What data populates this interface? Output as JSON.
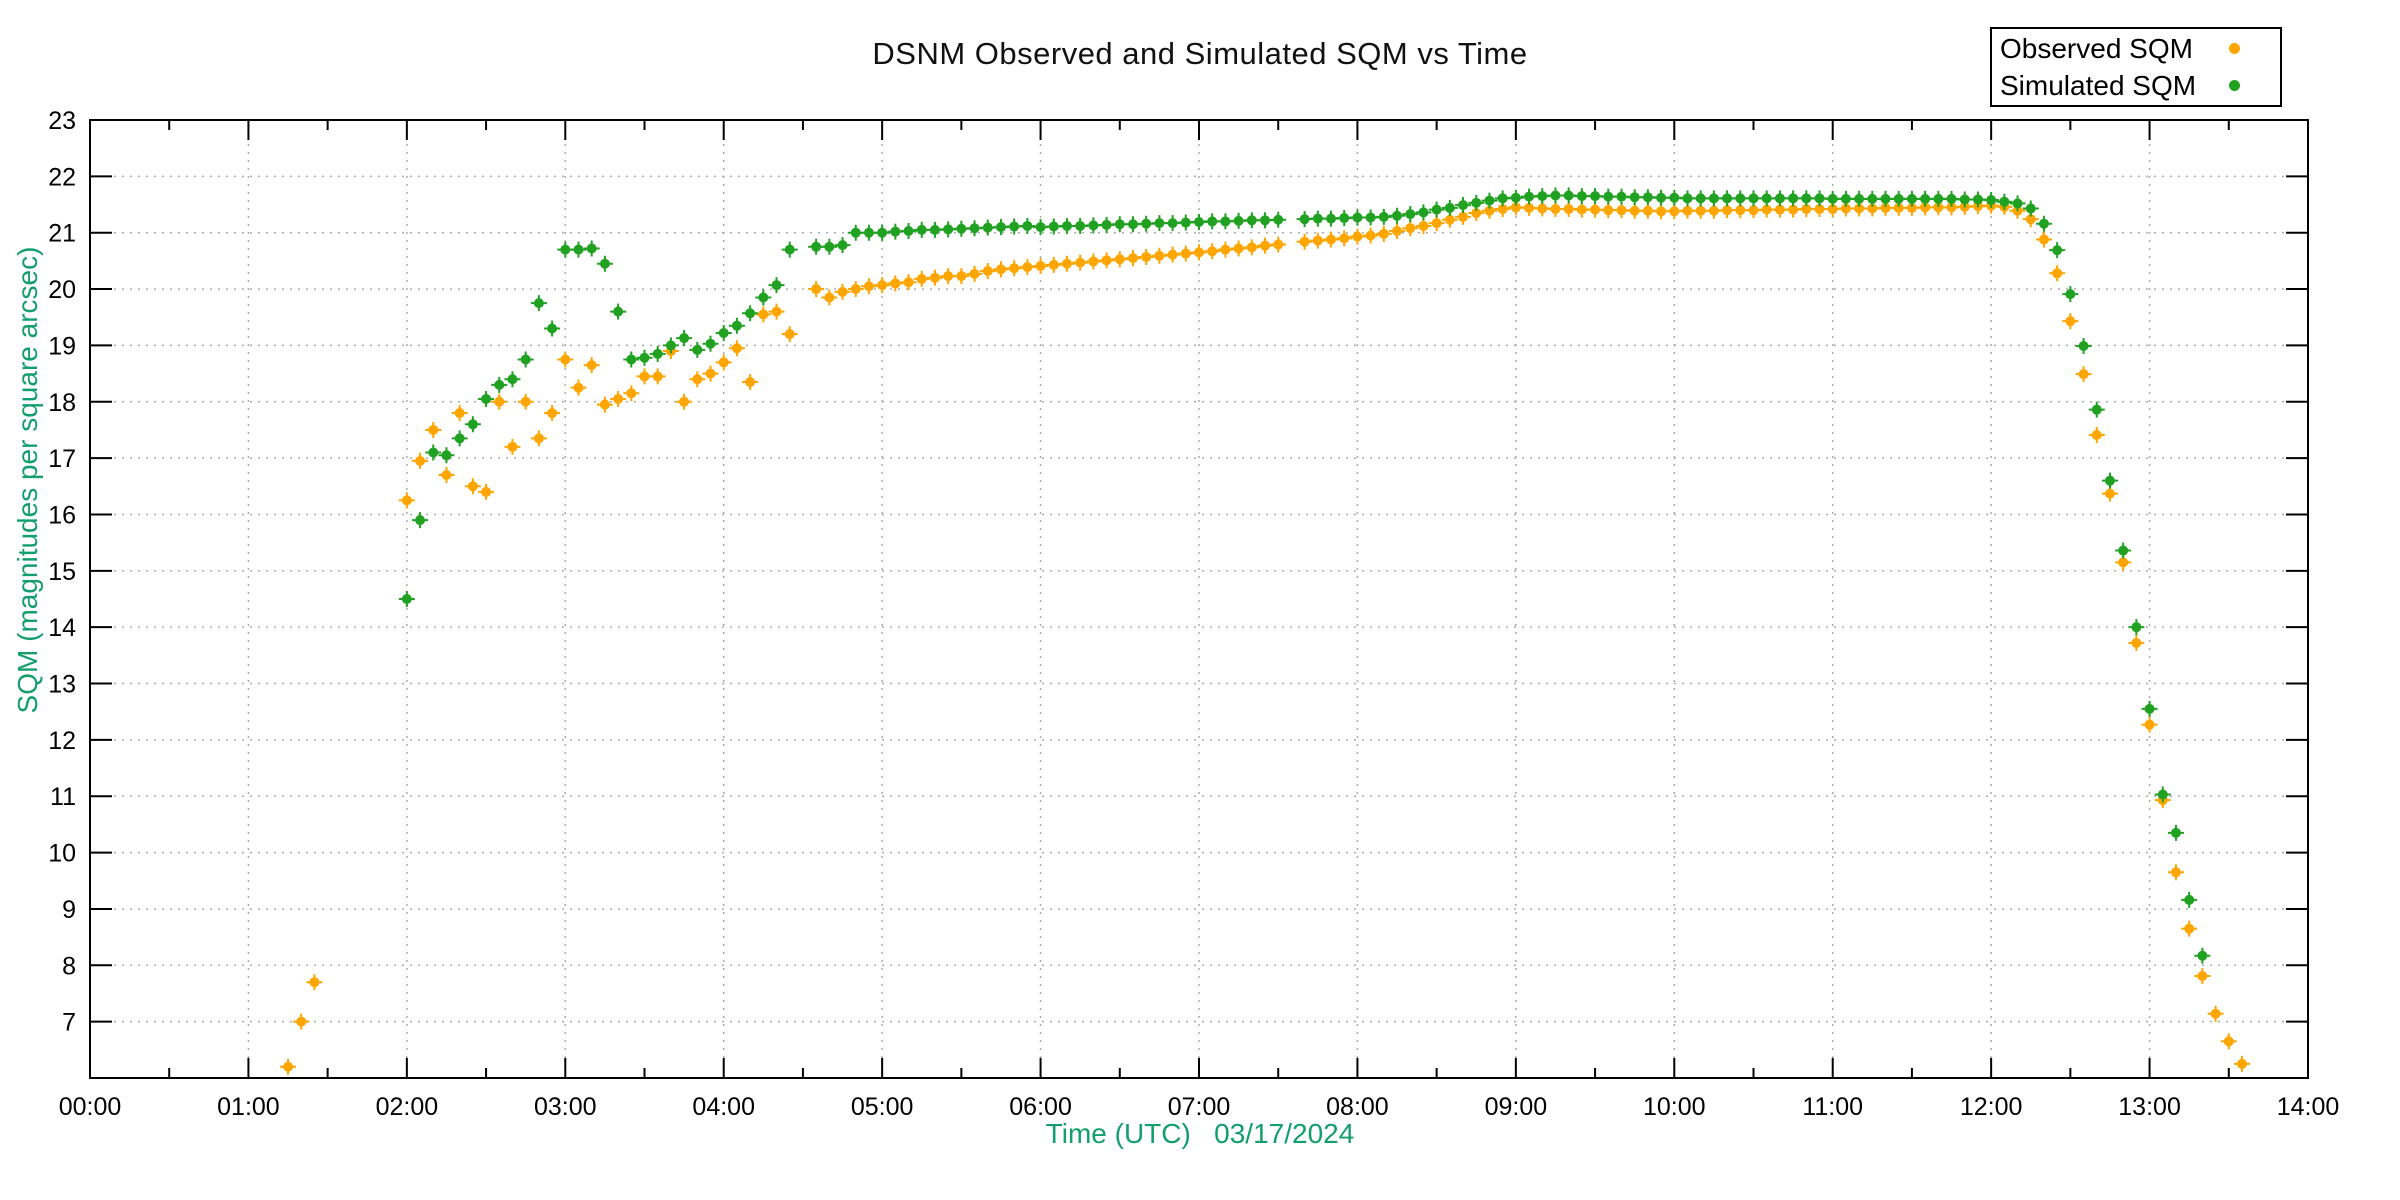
{
  "chart_data": {
    "type": "scatter",
    "title": "DSNM Observed and Simulated SQM vs Time",
    "xlabel": "Time (UTC)   03/17/2024",
    "ylabel": "SQM (magnitudes per square arcsec)",
    "axis_label_color": "#149E6C",
    "tick_label_color": "#000000",
    "frame_color": "#000000",
    "grid": {
      "show": true,
      "style": "dotted",
      "color": "#ababab"
    },
    "x_axis": {
      "min_hours": 0,
      "max_hours": 14,
      "major_tick_hours": 1,
      "minor_tick_hours": 0.5,
      "tick_labels": [
        "00:00",
        "01:00",
        "02:00",
        "03:00",
        "04:00",
        "05:00",
        "06:00",
        "07:00",
        "08:00",
        "09:00",
        "10:00",
        "11:00",
        "12:00",
        "13:00",
        "14:00"
      ]
    },
    "y_axis": {
      "min": 6,
      "max": 23,
      "tick_min": 7,
      "tick_max": 23,
      "tick_step": 1
    },
    "legend": {
      "position": "top-right",
      "entries": [
        {
          "label": "Observed SQM",
          "color": "#FFA500"
        },
        {
          "label": "Simulated SQM",
          "color": "#21A121"
        }
      ]
    },
    "series": [
      {
        "name": "Observed SQM",
        "color": "#FFA500",
        "points": [
          [
            "01:15",
            6.2
          ],
          [
            "01:20",
            7.0
          ],
          [
            "01:25",
            7.7
          ],
          [
            "02:00",
            16.25
          ],
          [
            "02:05",
            16.95
          ],
          [
            "02:10",
            17.5
          ],
          [
            "02:15",
            16.7
          ],
          [
            "02:20",
            17.8
          ],
          [
            "02:25",
            16.5
          ],
          [
            "02:30",
            16.4
          ],
          [
            "02:35",
            18.0
          ],
          [
            "02:40",
            17.2
          ],
          [
            "02:45",
            18.0
          ],
          [
            "02:50",
            17.35
          ],
          [
            "02:55",
            17.8
          ],
          [
            "03:00",
            18.75
          ],
          [
            "03:05",
            18.25
          ],
          [
            "03:10",
            18.65
          ],
          [
            "03:15",
            17.95
          ],
          [
            "03:20",
            18.05
          ],
          [
            "03:25",
            18.15
          ],
          [
            "03:30",
            18.45
          ],
          [
            "03:35",
            18.45
          ],
          [
            "03:40",
            18.9
          ],
          [
            "03:45",
            18.0
          ],
          [
            "03:50",
            18.4
          ],
          [
            "03:55",
            18.5
          ],
          [
            "04:00",
            18.7
          ],
          [
            "04:05",
            18.95
          ],
          [
            "04:10",
            18.35
          ],
          [
            "04:15",
            19.55
          ],
          [
            "04:20",
            19.6
          ],
          [
            "04:25",
            19.2
          ],
          [
            "04:35",
            20.0
          ],
          [
            "04:40",
            19.85
          ],
          [
            "04:45",
            19.95
          ],
          [
            "04:50",
            20.0
          ],
          [
            "04:55",
            20.05
          ],
          [
            "05:00",
            20.07
          ],
          [
            "05:05",
            20.1
          ],
          [
            "05:10",
            20.12
          ],
          [
            "05:15",
            20.18
          ],
          [
            "05:20",
            20.2
          ],
          [
            "05:25",
            20.23
          ],
          [
            "05:30",
            20.23
          ],
          [
            "05:35",
            20.27
          ],
          [
            "05:40",
            20.32
          ],
          [
            "05:45",
            20.35
          ],
          [
            "05:50",
            20.37
          ],
          [
            "05:55",
            20.39
          ],
          [
            "06:00",
            20.41
          ],
          [
            "06:05",
            20.43
          ],
          [
            "06:10",
            20.45
          ],
          [
            "06:15",
            20.47
          ],
          [
            "06:20",
            20.49
          ],
          [
            "06:25",
            20.51
          ],
          [
            "06:30",
            20.53
          ],
          [
            "06:35",
            20.55
          ],
          [
            "06:40",
            20.57
          ],
          [
            "06:45",
            20.59
          ],
          [
            "06:50",
            20.61
          ],
          [
            "06:55",
            20.63
          ],
          [
            "07:00",
            20.65
          ],
          [
            "07:05",
            20.67
          ],
          [
            "07:10",
            20.7
          ],
          [
            "07:15",
            20.72
          ],
          [
            "07:20",
            20.74
          ],
          [
            "07:25",
            20.77
          ],
          [
            "07:30",
            20.79
          ],
          [
            "07:40",
            20.84
          ],
          [
            "07:45",
            20.86
          ],
          [
            "07:50",
            20.88
          ],
          [
            "07:55",
            20.9
          ],
          [
            "08:00",
            20.93
          ],
          [
            "08:05",
            20.95
          ],
          [
            "08:10",
            20.98
          ],
          [
            "08:15",
            21.03
          ],
          [
            "08:20",
            21.08
          ],
          [
            "08:25",
            21.12
          ],
          [
            "08:30",
            21.17
          ],
          [
            "08:35",
            21.23
          ],
          [
            "08:40",
            21.28
          ],
          [
            "08:45",
            21.35
          ],
          [
            "08:50",
            21.39
          ],
          [
            "08:55",
            21.42
          ],
          [
            "09:00",
            21.45
          ],
          [
            "09:05",
            21.44
          ],
          [
            "09:10",
            21.43
          ],
          [
            "09:15",
            21.42
          ],
          [
            "09:20",
            21.42
          ],
          [
            "09:25",
            21.41
          ],
          [
            "09:30",
            21.41
          ],
          [
            "09:35",
            21.4
          ],
          [
            "09:40",
            21.4
          ],
          [
            "09:45",
            21.39
          ],
          [
            "09:50",
            21.39
          ],
          [
            "09:55",
            21.38
          ],
          [
            "10:00",
            21.38
          ],
          [
            "10:05",
            21.39
          ],
          [
            "10:10",
            21.39
          ],
          [
            "10:15",
            21.39
          ],
          [
            "10:20",
            21.4
          ],
          [
            "10:25",
            21.4
          ],
          [
            "10:30",
            21.4
          ],
          [
            "10:35",
            21.41
          ],
          [
            "10:40",
            21.41
          ],
          [
            "10:45",
            21.41
          ],
          [
            "10:50",
            21.42
          ],
          [
            "10:55",
            21.42
          ],
          [
            "11:00",
            21.42
          ],
          [
            "11:05",
            21.43
          ],
          [
            "11:10",
            21.43
          ],
          [
            "11:15",
            21.43
          ],
          [
            "11:20",
            21.44
          ],
          [
            "11:25",
            21.44
          ],
          [
            "11:30",
            21.44
          ],
          [
            "11:35",
            21.45
          ],
          [
            "11:40",
            21.45
          ],
          [
            "11:45",
            21.45
          ],
          [
            "11:50",
            21.46
          ],
          [
            "11:55",
            21.47
          ],
          [
            "12:00",
            21.48
          ],
          [
            "12:05",
            21.46
          ],
          [
            "12:10",
            21.39
          ],
          [
            "12:15",
            21.24
          ],
          [
            "12:20",
            20.88
          ],
          [
            "12:25",
            20.28
          ],
          [
            "12:30",
            19.43
          ],
          [
            "12:35",
            18.49
          ],
          [
            "12:40",
            17.41
          ],
          [
            "12:45",
            16.37
          ],
          [
            "12:50",
            15.15
          ],
          [
            "12:55",
            13.72
          ],
          [
            "13:00",
            12.27
          ],
          [
            "13:05",
            10.93
          ],
          [
            "13:10",
            9.65
          ],
          [
            "13:15",
            8.65
          ],
          [
            "13:20",
            7.81
          ],
          [
            "13:25",
            7.14
          ],
          [
            "13:30",
            6.65
          ],
          [
            "13:35",
            6.25
          ]
        ]
      },
      {
        "name": "Simulated SQM",
        "color": "#21A121",
        "points": [
          [
            "02:00",
            14.5
          ],
          [
            "02:05",
            15.9
          ],
          [
            "02:10",
            17.1
          ],
          [
            "02:15",
            17.05
          ],
          [
            "02:20",
            17.35
          ],
          [
            "02:25",
            17.6
          ],
          [
            "02:30",
            18.05
          ],
          [
            "02:35",
            18.3
          ],
          [
            "02:40",
            18.4
          ],
          [
            "02:45",
            18.75
          ],
          [
            "02:50",
            19.75
          ],
          [
            "02:55",
            19.3
          ],
          [
            "03:00",
            20.7
          ],
          [
            "03:05",
            20.7
          ],
          [
            "03:10",
            20.72
          ],
          [
            "03:15",
            20.45
          ],
          [
            "03:20",
            19.6
          ],
          [
            "03:25",
            18.75
          ],
          [
            "03:30",
            18.78
          ],
          [
            "03:35",
            18.85
          ],
          [
            "03:40",
            19.0
          ],
          [
            "03:45",
            19.13
          ],
          [
            "03:50",
            18.92
          ],
          [
            "03:55",
            19.03
          ],
          [
            "04:00",
            19.22
          ],
          [
            "04:05",
            19.35
          ],
          [
            "04:10",
            19.57
          ],
          [
            "04:15",
            19.85
          ],
          [
            "04:20",
            20.07
          ],
          [
            "04:25",
            20.7
          ],
          [
            "04:35",
            20.75
          ],
          [
            "04:40",
            20.75
          ],
          [
            "04:45",
            20.78
          ],
          [
            "04:50",
            21.0
          ],
          [
            "04:55",
            21.0
          ],
          [
            "05:00",
            21.0
          ],
          [
            "05:05",
            21.02
          ],
          [
            "05:10",
            21.03
          ],
          [
            "05:15",
            21.05
          ],
          [
            "05:20",
            21.05
          ],
          [
            "05:25",
            21.06
          ],
          [
            "05:30",
            21.07
          ],
          [
            "05:35",
            21.08
          ],
          [
            "05:40",
            21.09
          ],
          [
            "05:45",
            21.1
          ],
          [
            "05:50",
            21.11
          ],
          [
            "05:55",
            21.12
          ],
          [
            "06:00",
            21.1
          ],
          [
            "06:05",
            21.11
          ],
          [
            "06:10",
            21.12
          ],
          [
            "06:15",
            21.12
          ],
          [
            "06:20",
            21.13
          ],
          [
            "06:25",
            21.14
          ],
          [
            "06:30",
            21.15
          ],
          [
            "06:35",
            21.15
          ],
          [
            "06:40",
            21.16
          ],
          [
            "06:45",
            21.17
          ],
          [
            "06:50",
            21.17
          ],
          [
            "06:55",
            21.18
          ],
          [
            "07:00",
            21.19
          ],
          [
            "07:05",
            21.2
          ],
          [
            "07:10",
            21.2
          ],
          [
            "07:15",
            21.21
          ],
          [
            "07:20",
            21.22
          ],
          [
            "07:25",
            21.22
          ],
          [
            "07:30",
            21.23
          ],
          [
            "07:40",
            21.24
          ],
          [
            "07:45",
            21.25
          ],
          [
            "07:50",
            21.25
          ],
          [
            "07:55",
            21.26
          ],
          [
            "08:00",
            21.27
          ],
          [
            "08:05",
            21.27
          ],
          [
            "08:10",
            21.28
          ],
          [
            "08:15",
            21.3
          ],
          [
            "08:20",
            21.33
          ],
          [
            "08:25",
            21.36
          ],
          [
            "08:30",
            21.41
          ],
          [
            "08:35",
            21.44
          ],
          [
            "08:40",
            21.49
          ],
          [
            "08:45",
            21.53
          ],
          [
            "08:50",
            21.57
          ],
          [
            "08:55",
            21.61
          ],
          [
            "09:00",
            21.62
          ],
          [
            "09:05",
            21.64
          ],
          [
            "09:10",
            21.65
          ],
          [
            "09:15",
            21.66
          ],
          [
            "09:20",
            21.66
          ],
          [
            "09:25",
            21.65
          ],
          [
            "09:30",
            21.65
          ],
          [
            "09:35",
            21.64
          ],
          [
            "09:40",
            21.64
          ],
          [
            "09:45",
            21.63
          ],
          [
            "09:50",
            21.63
          ],
          [
            "09:55",
            21.62
          ],
          [
            "10:00",
            21.62
          ],
          [
            "10:05",
            21.61
          ],
          [
            "10:10",
            21.61
          ],
          [
            "10:15",
            21.61
          ],
          [
            "10:20",
            21.61
          ],
          [
            "10:25",
            21.61
          ],
          [
            "10:30",
            21.61
          ],
          [
            "10:35",
            21.61
          ],
          [
            "10:40",
            21.61
          ],
          [
            "10:45",
            21.61
          ],
          [
            "10:50",
            21.61
          ],
          [
            "10:55",
            21.61
          ],
          [
            "11:00",
            21.6
          ],
          [
            "11:05",
            21.6
          ],
          [
            "11:10",
            21.6
          ],
          [
            "11:15",
            21.6
          ],
          [
            "11:20",
            21.6
          ],
          [
            "11:25",
            21.6
          ],
          [
            "11:30",
            21.6
          ],
          [
            "11:35",
            21.6
          ],
          [
            "11:40",
            21.6
          ],
          [
            "11:45",
            21.6
          ],
          [
            "11:50",
            21.59
          ],
          [
            "11:55",
            21.59
          ],
          [
            "12:00",
            21.58
          ],
          [
            "12:05",
            21.55
          ],
          [
            "12:10",
            21.52
          ],
          [
            "12:15",
            21.43
          ],
          [
            "12:20",
            21.16
          ],
          [
            "12:25",
            20.69
          ],
          [
            "12:30",
            19.91
          ],
          [
            "12:35",
            18.99
          ],
          [
            "12:40",
            17.86
          ],
          [
            "12:45",
            16.6
          ],
          [
            "12:50",
            15.36
          ],
          [
            "12:55",
            14.0
          ],
          [
            "13:00",
            12.55
          ],
          [
            "13:05",
            11.03
          ],
          [
            "13:10",
            10.35
          ],
          [
            "13:15",
            9.16
          ],
          [
            "13:20",
            8.17
          ]
        ]
      }
    ]
  }
}
